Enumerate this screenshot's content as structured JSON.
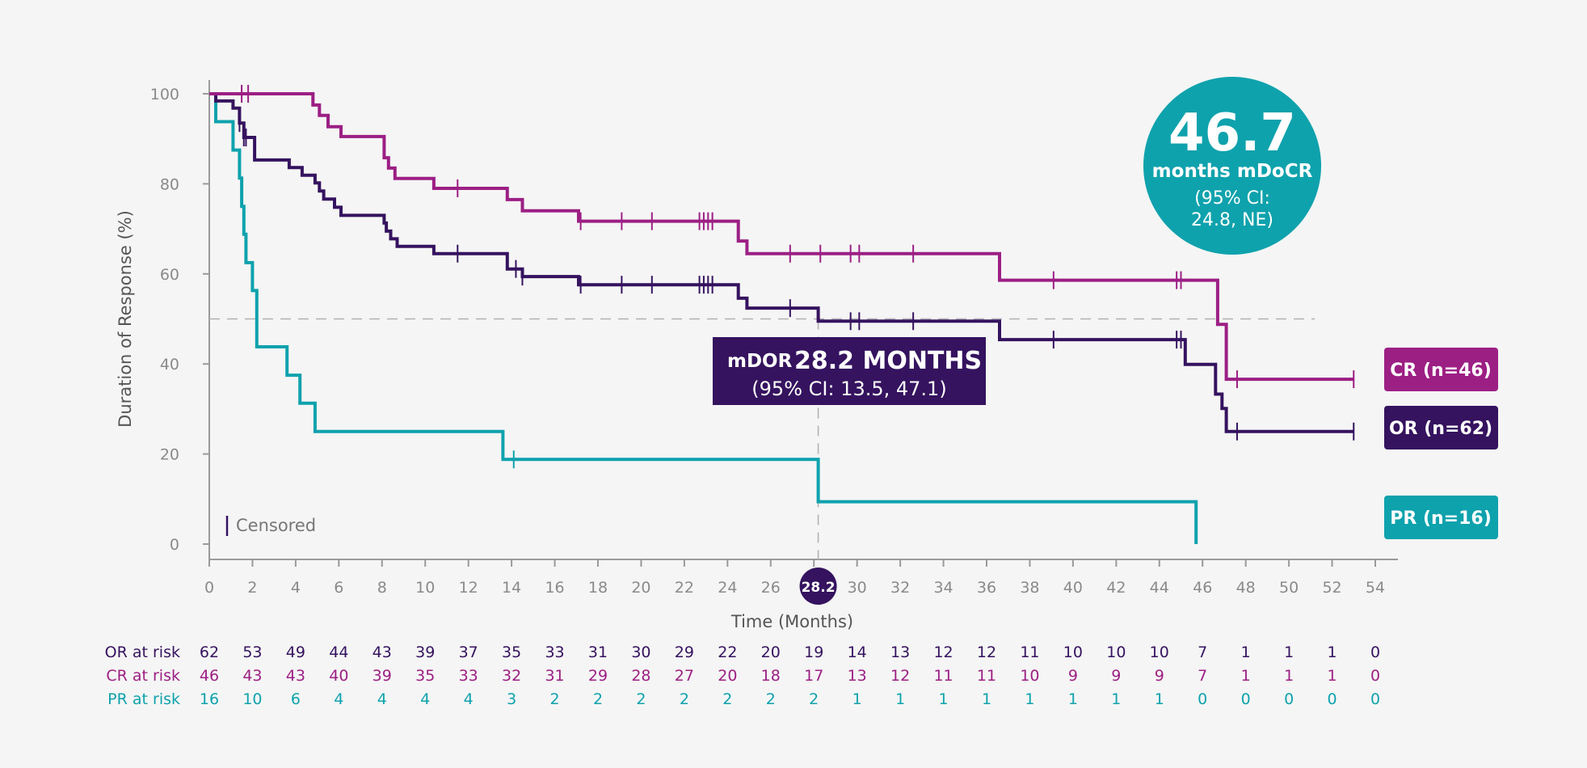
{
  "chart_data": {
    "type": "line",
    "step": true,
    "xlabel": "Time (Months)",
    "ylabel": "Duration of Response (%)",
    "xlim": [
      0,
      54
    ],
    "ylim": [
      0,
      100
    ],
    "x_ticks": [
      0,
      2,
      4,
      6,
      8,
      10,
      12,
      14,
      16,
      18,
      20,
      22,
      24,
      26,
      28,
      30,
      32,
      34,
      36,
      38,
      40,
      42,
      44,
      46,
      48,
      50,
      52,
      54
    ],
    "y_ticks": [
      0,
      20,
      40,
      60,
      80,
      100
    ],
    "reference_line_y": 50,
    "median_x": 28.2,
    "median_x_label": "28.2",
    "grid": false,
    "colors": {
      "OR": "#35135f",
      "CR": "#9c1f84",
      "PR": "#0ea2ad",
      "axis": "#9a9a9a",
      "text": "#8a8a8a"
    },
    "series": [
      {
        "key": "CR",
        "name": "CR (n=46)",
        "color": "#9c1f84",
        "points": [
          [
            0,
            100
          ],
          [
            4.8,
            100
          ],
          [
            4.8,
            97.5
          ],
          [
            5.1,
            97.5
          ],
          [
            5.1,
            95.2
          ],
          [
            5.5,
            95.2
          ],
          [
            5.5,
            92.7
          ],
          [
            6.1,
            92.7
          ],
          [
            6.1,
            90.5
          ],
          [
            8.1,
            90.5
          ],
          [
            8.1,
            85.8
          ],
          [
            8.3,
            85.8
          ],
          [
            8.3,
            83.5
          ],
          [
            8.6,
            83.5
          ],
          [
            8.6,
            81.2
          ],
          [
            10.4,
            81.2
          ],
          [
            10.4,
            79
          ],
          [
            13.8,
            79
          ],
          [
            13.8,
            76.5
          ],
          [
            14.5,
            76.5
          ],
          [
            14.5,
            74
          ],
          [
            17.1,
            74
          ],
          [
            17.1,
            71.7
          ],
          [
            24.5,
            71.7
          ],
          [
            24.5,
            67.3
          ],
          [
            24.9,
            67.3
          ],
          [
            24.9,
            64.5
          ],
          [
            36.6,
            64.5
          ],
          [
            36.6,
            58.6
          ],
          [
            46.7,
            58.6
          ],
          [
            46.7,
            48.8
          ],
          [
            47.1,
            48.8
          ],
          [
            47.1,
            36.6
          ],
          [
            53,
            36.6
          ]
        ],
        "censored": [
          [
            1.5,
            100
          ],
          [
            1.8,
            100
          ],
          [
            11.5,
            79
          ],
          [
            17.2,
            71.7
          ],
          [
            19.1,
            71.7
          ],
          [
            20.5,
            71.7
          ],
          [
            22.7,
            71.7
          ],
          [
            22.9,
            71.7
          ],
          [
            23.1,
            71.7
          ],
          [
            23.3,
            71.7
          ],
          [
            26.9,
            64.5
          ],
          [
            28.3,
            64.5
          ],
          [
            29.7,
            64.5
          ],
          [
            30.1,
            64.5
          ],
          [
            32.6,
            64.5
          ],
          [
            39.1,
            58.6
          ],
          [
            44.8,
            58.6
          ],
          [
            45,
            58.6
          ],
          [
            47.6,
            36.6
          ],
          [
            53,
            36.6
          ]
        ]
      },
      {
        "key": "OR",
        "name": "OR (n=62)",
        "color": "#35135f",
        "points": [
          [
            0,
            100
          ],
          [
            0.3,
            100
          ],
          [
            0.3,
            98.4
          ],
          [
            1.1,
            98.4
          ],
          [
            1.1,
            96.8
          ],
          [
            1.4,
            96.8
          ],
          [
            1.4,
            93.5
          ],
          [
            1.6,
            93.5
          ],
          [
            1.6,
            90.3
          ],
          [
            2.1,
            90.3
          ],
          [
            2.1,
            85.3
          ],
          [
            3.7,
            85.3
          ],
          [
            3.7,
            83.6
          ],
          [
            4.3,
            83.6
          ],
          [
            4.3,
            81.9
          ],
          [
            4.9,
            81.9
          ],
          [
            4.9,
            80.2
          ],
          [
            5.1,
            80.2
          ],
          [
            5.1,
            78.4
          ],
          [
            5.3,
            78.4
          ],
          [
            5.3,
            76.6
          ],
          [
            5.8,
            76.6
          ],
          [
            5.8,
            74.8
          ],
          [
            6.1,
            74.8
          ],
          [
            6.1,
            73
          ],
          [
            8.1,
            73
          ],
          [
            8.1,
            71.3
          ],
          [
            8.2,
            71.3
          ],
          [
            8.2,
            69.5
          ],
          [
            8.4,
            69.5
          ],
          [
            8.4,
            67.8
          ],
          [
            8.7,
            67.8
          ],
          [
            8.7,
            66.1
          ],
          [
            10.4,
            66.1
          ],
          [
            10.4,
            64.5
          ],
          [
            13.8,
            64.5
          ],
          [
            13.8,
            61.1
          ],
          [
            14.5,
            61.1
          ],
          [
            14.5,
            59.4
          ],
          [
            17.1,
            59.4
          ],
          [
            17.1,
            57.6
          ],
          [
            24.5,
            57.6
          ],
          [
            24.5,
            54.6
          ],
          [
            24.9,
            54.6
          ],
          [
            24.9,
            52.4
          ],
          [
            28.2,
            52.4
          ],
          [
            28.2,
            49.5
          ],
          [
            36.6,
            49.5
          ],
          [
            36.6,
            45.4
          ],
          [
            45.2,
            45.4
          ],
          [
            45.2,
            39.9
          ],
          [
            46.6,
            39.9
          ],
          [
            46.6,
            33.3
          ],
          [
            46.9,
            33.3
          ],
          [
            46.9,
            30.1
          ],
          [
            47.1,
            30.1
          ],
          [
            47.1,
            25
          ],
          [
            53,
            25
          ]
        ],
        "censored": [
          [
            1.4,
            93.5
          ],
          [
            1.6,
            90.3
          ],
          [
            1.7,
            90.3
          ],
          [
            11.5,
            64.5
          ],
          [
            14.2,
            61.1
          ],
          [
            14.5,
            59.4
          ],
          [
            17.2,
            57.6
          ],
          [
            19.1,
            57.6
          ],
          [
            20.5,
            57.6
          ],
          [
            22.7,
            57.6
          ],
          [
            22.9,
            57.6
          ],
          [
            23.1,
            57.6
          ],
          [
            23.3,
            57.6
          ],
          [
            26.9,
            52.4
          ],
          [
            29.7,
            49.5
          ],
          [
            30.1,
            49.5
          ],
          [
            32.6,
            49.5
          ],
          [
            39.1,
            45.4
          ],
          [
            44.8,
            45.4
          ],
          [
            45,
            45.4
          ],
          [
            47.6,
            25
          ],
          [
            53,
            25
          ]
        ]
      },
      {
        "key": "PR",
        "name": "PR (n=16)",
        "color": "#0ea2ad",
        "points": [
          [
            0,
            100
          ],
          [
            0.3,
            100
          ],
          [
            0.3,
            93.8
          ],
          [
            1.1,
            93.8
          ],
          [
            1.1,
            87.5
          ],
          [
            1.4,
            87.5
          ],
          [
            1.4,
            81.3
          ],
          [
            1.5,
            81.3
          ],
          [
            1.5,
            75
          ],
          [
            1.6,
            75
          ],
          [
            1.6,
            68.8
          ],
          [
            1.7,
            68.8
          ],
          [
            1.7,
            62.5
          ],
          [
            2,
            62.5
          ],
          [
            2,
            56.3
          ],
          [
            2.2,
            56.3
          ],
          [
            2.2,
            43.8
          ],
          [
            3.6,
            43.8
          ],
          [
            3.6,
            37.5
          ],
          [
            4.2,
            37.5
          ],
          [
            4.2,
            31.3
          ],
          [
            4.9,
            31.3
          ],
          [
            4.9,
            25
          ],
          [
            13.6,
            25
          ],
          [
            13.6,
            18.8
          ],
          [
            28.2,
            18.8
          ],
          [
            28.2,
            9.4
          ],
          [
            45.7,
            9.4
          ],
          [
            45.7,
            0
          ]
        ],
        "censored": [
          [
            14.1,
            18.8
          ]
        ]
      }
    ],
    "legend_placement": "right",
    "censored_legend": "Censored",
    "annotations": {
      "median_box": {
        "prefix": "mDOR",
        "value": "28.2 MONTHS",
        "ci": "(95% CI: 13.5, 47.1)"
      },
      "circle": {
        "value": "46.7",
        "label": "months mDoCR",
        "ci_line1": "(95% CI:",
        "ci_line2": "24.8, NE)"
      }
    },
    "risk_table": {
      "times": [
        0,
        2,
        4,
        6,
        8,
        10,
        12,
        14,
        16,
        18,
        20,
        22,
        24,
        26,
        28,
        30,
        32,
        34,
        36,
        38,
        40,
        42,
        44,
        46,
        48,
        50,
        52,
        54
      ],
      "rows": [
        {
          "key": "OR",
          "label": "OR at risk",
          "values": [
            62,
            53,
            49,
            44,
            43,
            39,
            37,
            35,
            33,
            31,
            30,
            29,
            22,
            20,
            19,
            14,
            13,
            12,
            12,
            11,
            10,
            10,
            10,
            7,
            1,
            1,
            1,
            0
          ]
        },
        {
          "key": "CR",
          "label": "CR at risk",
          "values": [
            46,
            43,
            43,
            40,
            39,
            35,
            33,
            32,
            31,
            29,
            28,
            27,
            20,
            18,
            17,
            13,
            12,
            11,
            11,
            10,
            9,
            9,
            9,
            7,
            1,
            1,
            1,
            0
          ]
        },
        {
          "key": "PR",
          "label": "PR at risk",
          "values": [
            16,
            10,
            6,
            4,
            4,
            4,
            4,
            3,
            2,
            2,
            2,
            2,
            2,
            2,
            2,
            1,
            1,
            1,
            1,
            1,
            1,
            1,
            1,
            0,
            0,
            0,
            0,
            0
          ]
        }
      ]
    }
  }
}
